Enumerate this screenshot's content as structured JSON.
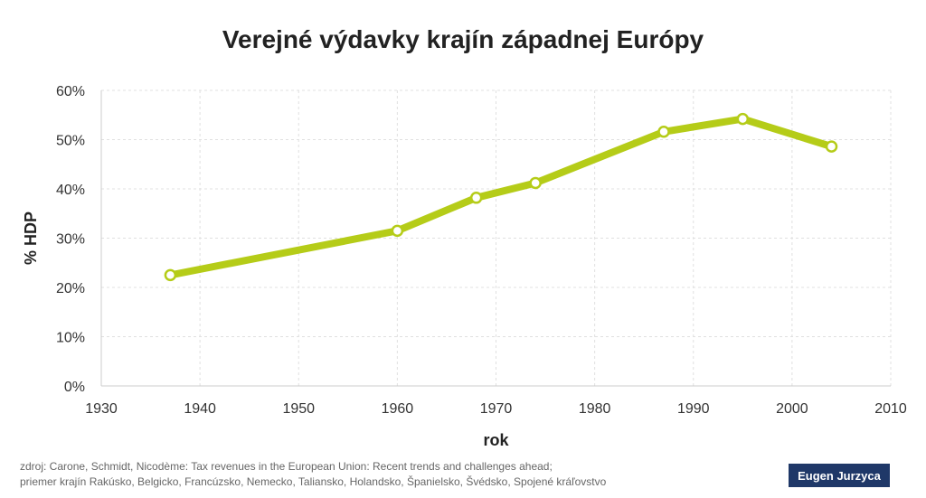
{
  "title": "Verejné výdavky krajín západnej Európy",
  "source": {
    "line1": "zdroj: Carone, Schmidt, Nicodème: Tax revenues in the European Union: Recent trends and challenges ahead;",
    "line2": "priemer krajín Rakúsko, Belgicko, Francúzsko, Nemecko, Taliansko, Holandsko, Španielsko, Švédsko, Spojené kráľovstvo"
  },
  "author": "Eugen Jurzyca",
  "colors": {
    "series": "#b5cc18",
    "grid": "#e0e0e0",
    "badge": "#1f3868"
  },
  "chart_data": {
    "type": "line",
    "title": "Verejné výdavky krajín západnej Európy",
    "xlabel": "rok",
    "ylabel": "% HDP",
    "xlim": [
      1930,
      2010
    ],
    "ylim": [
      0,
      60
    ],
    "x_ticks": [
      1930,
      1940,
      1950,
      1960,
      1970,
      1980,
      1990,
      2000,
      2010
    ],
    "y_ticks": [
      "0%",
      "10%",
      "20%",
      "30%",
      "40%",
      "50%",
      "60%"
    ],
    "grid": true,
    "series": [
      {
        "x": [
          1937,
          1960,
          1968,
          1974,
          1987,
          1995,
          2004
        ],
        "y": [
          22.5,
          31.5,
          38.2,
          41.2,
          51.6,
          54.2,
          48.6
        ]
      }
    ]
  }
}
